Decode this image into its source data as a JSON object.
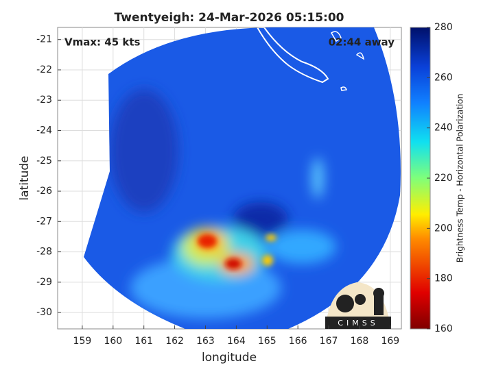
{
  "title": "Twentyeigh: 24-Mar-2026 05:15:00",
  "annotations": {
    "vmax": "Vmax: 45 kts",
    "time_away": "02:44 away"
  },
  "x_axis": {
    "label": "longitude",
    "lim": [
      158.2,
      169.36
    ],
    "ticks": [
      159,
      160,
      161,
      162,
      163,
      164,
      165,
      166,
      167,
      168,
      169
    ]
  },
  "y_axis": {
    "label": "latitude",
    "lim": [
      -30.54,
      -20.6
    ],
    "ticks": [
      -21,
      -22,
      -23,
      -24,
      -25,
      -26,
      -27,
      -28,
      -29,
      -30
    ]
  },
  "colorbar": {
    "label": "Brightness Temp - Horizontal Polarization",
    "lim": [
      160,
      280
    ],
    "ticks": [
      160,
      180,
      200,
      220,
      240,
      260,
      280
    ]
  },
  "logo": "CIMSS"
}
